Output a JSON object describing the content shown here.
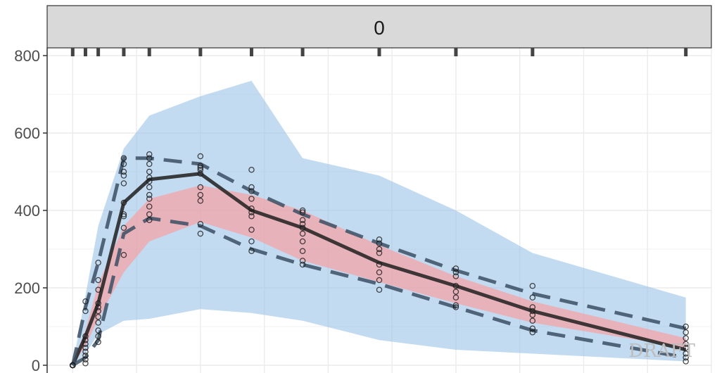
{
  "chart_data": {
    "type": "line",
    "panel_label": "0",
    "watermark": "DRAFT",
    "xlim": [
      -1,
      25
    ],
    "ylim": [
      -20,
      820
    ],
    "y_ticks": [
      0,
      200,
      400,
      600,
      800
    ],
    "x_grid": [
      0,
      2.5,
      5,
      7.5,
      10,
      12.5,
      15,
      17.5,
      20,
      22.5,
      25
    ],
    "rug_times": [
      0,
      0.5,
      1,
      2,
      3,
      5,
      7,
      9,
      12,
      15,
      18,
      24
    ],
    "grid": true,
    "outer_band": {
      "color": "#9ec5e8",
      "x": [
        0,
        0.5,
        1,
        2,
        3,
        5,
        7,
        9,
        12,
        15,
        18,
        24
      ],
      "lower": [
        0,
        30,
        80,
        115,
        120,
        145,
        135,
        115,
        65,
        40,
        30,
        10
      ],
      "upper": [
        0,
        180,
        360,
        560,
        645,
        695,
        735,
        535,
        490,
        400,
        290,
        175
      ]
    },
    "inner_band": {
      "color": "#ff9a9a",
      "x": [
        0,
        0.5,
        1,
        2,
        3,
        5,
        7,
        9,
        12,
        15,
        18,
        24
      ],
      "lower": [
        0,
        50,
        120,
        240,
        320,
        370,
        330,
        270,
        215,
        160,
        110,
        45
      ],
      "upper": [
        0,
        90,
        210,
        360,
        430,
        465,
        440,
        400,
        310,
        230,
        165,
        70
      ]
    },
    "series": [
      {
        "style": "solid",
        "color": "#1f1f1f",
        "x": [
          0,
          0.5,
          1,
          2,
          3,
          5,
          7,
          9,
          12,
          15,
          18,
          24
        ],
        "values": [
          0,
          75,
          160,
          420,
          480,
          495,
          400,
          355,
          265,
          205,
          140,
          40
        ]
      },
      {
        "style": "dashed-upper",
        "color": "#3b4f63",
        "x": [
          0,
          0.5,
          1,
          2,
          3,
          5,
          7,
          9,
          12,
          15,
          18,
          24
        ],
        "values": [
          0,
          150,
          265,
          535,
          535,
          520,
          450,
          390,
          315,
          245,
          185,
          95
        ]
      },
      {
        "style": "dashed-lower",
        "color": "#3b4f63",
        "x": [
          0,
          0.5,
          1,
          2,
          3,
          5,
          7,
          9,
          12,
          15,
          18,
          24
        ],
        "values": [
          0,
          20,
          65,
          340,
          380,
          360,
          300,
          260,
          210,
          150,
          90,
          20
        ]
      }
    ],
    "points": [
      {
        "x": 0,
        "values": [
          0,
          0,
          0,
          0,
          0,
          0,
          0,
          0
        ]
      },
      {
        "x": 0.5,
        "values": [
          5,
          15,
          25,
          35,
          45,
          55,
          65,
          75,
          140,
          165
        ]
      },
      {
        "x": 1,
        "values": [
          60,
          75,
          90,
          110,
          125,
          140,
          150,
          160,
          195,
          220,
          265
        ]
      },
      {
        "x": 2,
        "values": [
          285,
          355,
          385,
          390,
          420,
          470,
          490,
          500,
          520,
          535
        ]
      },
      {
        "x": 3,
        "values": [
          375,
          390,
          410,
          430,
          440,
          460,
          475,
          485,
          500,
          520,
          535,
          545
        ]
      },
      {
        "x": 5,
        "values": [
          340,
          365,
          425,
          440,
          460,
          495,
          505,
          510,
          515,
          540
        ]
      },
      {
        "x": 7,
        "values": [
          295,
          320,
          350,
          385,
          395,
          405,
          430,
          450,
          460,
          505
        ]
      },
      {
        "x": 9,
        "values": [
          260,
          270,
          295,
          320,
          340,
          355,
          365,
          375,
          395,
          400
        ]
      },
      {
        "x": 12,
        "values": [
          195,
          220,
          240,
          260,
          290,
          300,
          315,
          325
        ]
      },
      {
        "x": 15,
        "values": [
          150,
          155,
          175,
          190,
          205,
          230,
          240,
          250
        ]
      },
      {
        "x": 18,
        "values": [
          85,
          95,
          115,
          130,
          140,
          150,
          175,
          205
        ]
      },
      {
        "x": 24,
        "values": [
          10,
          20,
          30,
          45,
          55,
          70,
          85,
          100
        ]
      }
    ]
  }
}
